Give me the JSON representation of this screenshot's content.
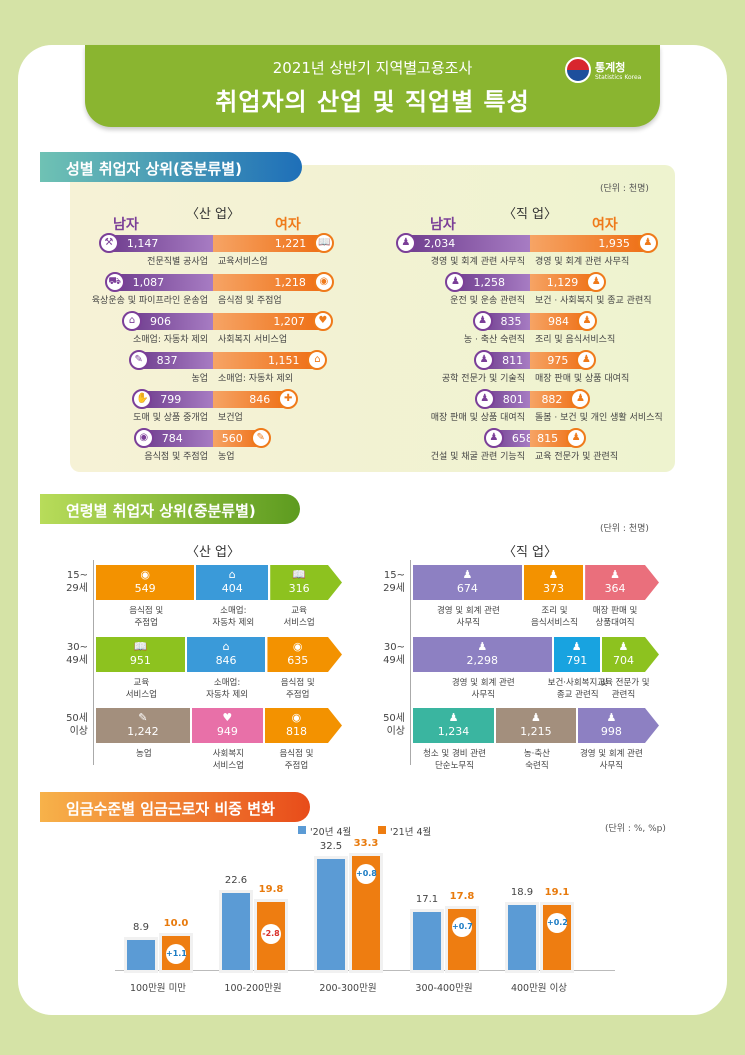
{
  "header": {
    "subtitle": "2021년 상반기 지역별고용조사",
    "title": "취업자의 산업 및 직업별 특성",
    "logo_text": "통계청",
    "logo_sub": "Statistics Korea"
  },
  "section1": {
    "title": "성별 취업자 상위(중분류별)",
    "unit": "(단위 : 천명)",
    "industry": {
      "title": "〈산 업〉",
      "male_label": "남자",
      "female_label": "여자",
      "rows": [
        {
          "male_name": "전문직별 공사업",
          "male_value": "1,147",
          "male_icon": "crane-icon",
          "female_name": "교육서비스업",
          "female_value": "1,221",
          "female_icon": "book-icon"
        },
        {
          "male_name": "육상운송 및 파이프라인 운송업",
          "male_value": "1,087",
          "male_icon": "truck-icon",
          "female_name": "음식점 및 주점업",
          "female_value": "1,218",
          "female_icon": "dish-icon"
        },
        {
          "male_name": "소매업: 자동차 제외",
          "male_value": "906",
          "male_icon": "store-icon",
          "female_name": "사회복지 서비스업",
          "female_value": "1,207",
          "female_icon": "heart-icon"
        },
        {
          "male_name": "농업",
          "male_value": "837",
          "male_icon": "corn-icon",
          "female_name": "소매업: 자동차 제외",
          "female_value": "1,151",
          "female_icon": "store-icon"
        },
        {
          "male_name": "도매 및 상품 중개업",
          "male_value": "799",
          "male_icon": "handshake-icon",
          "female_name": "보건업",
          "female_value": "846",
          "female_icon": "medical-kit-icon"
        },
        {
          "male_name": "음식점 및 주점업",
          "male_value": "784",
          "male_icon": "dish-icon",
          "female_name": "농업",
          "female_value": "560",
          "female_icon": "corn-icon"
        }
      ]
    },
    "occupation": {
      "title": "〈직 업〉",
      "male_label": "남자",
      "female_label": "여자",
      "rows": [
        {
          "male_name": "경영 및 회계 관련 사무직",
          "male_value": "2,034",
          "male_icon": "office-worker-icon",
          "female_name": "경영 및 회계 관련 사무직",
          "female_value": "1,935",
          "female_icon": "office-worker-icon"
        },
        {
          "male_name": "운전 및 운송 관련직",
          "male_value": "1,258",
          "male_icon": "driver-icon",
          "female_name": "보건 · 사회복지 및 종교 관련직",
          "female_value": "1,129",
          "female_icon": "doctor-icon"
        },
        {
          "male_name": "농 · 축산 숙련직",
          "male_value": "835",
          "male_icon": "farmer-icon",
          "female_name": "조리 및 음식서비스직",
          "female_value": "984",
          "female_icon": "chef-icon"
        },
        {
          "male_name": "공학 전문가 및 기술직",
          "male_value": "811",
          "male_icon": "engineer-icon",
          "female_name": "매장 판매 및 상품 대여직",
          "female_value": "975",
          "female_icon": "cashier-icon"
        },
        {
          "male_name": "매장 판매 및 상품 대여직",
          "male_value": "801",
          "male_icon": "cashier-icon",
          "female_name": "돌봄 · 보건 및 개인 생활 서비스직",
          "female_value": "882",
          "female_icon": "caregiver-icon"
        },
        {
          "male_name": "건설 및 채굴 관련 기능직",
          "male_value": "658",
          "male_icon": "construction-worker-icon",
          "female_name": "교육 전문가 및 관련직",
          "female_value": "815",
          "female_icon": "teacher-icon"
        }
      ]
    }
  },
  "section2": {
    "title": "연령별 취업자 상위(중분류별)",
    "unit": "(단위 : 천명)",
    "industry": {
      "title": "〈산 업〉",
      "rows": [
        {
          "age": "15~\n29세",
          "segments": [
            {
              "value": "549",
              "label": "음식점 및\n주점업",
              "color": "#f39200",
              "icon": "dish-icon"
            },
            {
              "value": "404",
              "label": "소매업:\n자동차 제외",
              "color": "#3a9ad9",
              "icon": "store-icon"
            },
            {
              "value": "316",
              "label": "교육\n서비스업",
              "color": "#8dc21f",
              "icon": "book-icon"
            }
          ]
        },
        {
          "age": "30~\n49세",
          "segments": [
            {
              "value": "951",
              "label": "교육\n서비스업",
              "color": "#8dc21f",
              "icon": "book-icon"
            },
            {
              "value": "846",
              "label": "소매업:\n자동차 제외",
              "color": "#3a9ad9",
              "icon": "store-icon"
            },
            {
              "value": "635",
              "label": "음식점 및\n주점업",
              "color": "#f39200",
              "icon": "dish-icon"
            }
          ]
        },
        {
          "age": "50세\n이상",
          "segments": [
            {
              "value": "1,242",
              "label": "농업",
              "color": "#a38f7d",
              "icon": "corn-icon"
            },
            {
              "value": "949",
              "label": "사회복지\n서비스업",
              "color": "#e870a8",
              "icon": "heart-icon"
            },
            {
              "value": "818",
              "label": "음식점 및\n주점업",
              "color": "#f39200",
              "icon": "dish-icon"
            }
          ]
        }
      ]
    },
    "occupation": {
      "title": "〈직 업〉",
      "rows": [
        {
          "age": "15~\n29세",
          "segments": [
            {
              "value": "674",
              "label": "경영 및 회계 관련\n사무직",
              "color": "#8d80c2",
              "icon": "office-worker-icon"
            },
            {
              "value": "373",
              "label": "조리 및\n음식서비스직",
              "color": "#f39200",
              "icon": "chef-icon"
            },
            {
              "value": "364",
              "label": "매장 판매 및\n상품대여직",
              "color": "#ea6f7c",
              "icon": "cashier-icon"
            }
          ]
        },
        {
          "age": "30~\n49세",
          "segments": [
            {
              "value": "2,298",
              "label": "경영 및 회계 관련\n사무직",
              "color": "#8d80c2",
              "icon": "office-worker-icon"
            },
            {
              "value": "791",
              "label": "보건·사회복지 및\n종교 관련직",
              "color": "#18a3e0",
              "icon": "doctor-icon"
            },
            {
              "value": "704",
              "label": "교육 전문가 및\n관련직",
              "color": "#8dc21f",
              "icon": "teacher-icon"
            }
          ]
        },
        {
          "age": "50세\n이상",
          "segments": [
            {
              "value": "1,234",
              "label": "청소 및 경비 관련\n단순노무직",
              "color": "#3ab5a0",
              "icon": "cleaner-icon"
            },
            {
              "value": "1,215",
              "label": "농·축산\n숙련직",
              "color": "#a38f7d",
              "icon": "farmer-icon"
            },
            {
              "value": "998",
              "label": "경영 및 회계 관련\n사무직",
              "color": "#8d80c2",
              "icon": "office-worker-icon"
            }
          ]
        }
      ]
    }
  },
  "section3": {
    "title": "임금수준별 임금근로자 비중 변화",
    "unit": "(단위 : %, %p)"
  },
  "chart_data": {
    "type": "bar",
    "title": "임금수준별 임금근로자 비중 변화",
    "unit": "(단위 : %, %p)",
    "legend": "top-center",
    "categories": [
      "100만원 미만",
      "100-200만원",
      "200-300만원",
      "300-400만원",
      "400만원 이상"
    ],
    "series": [
      {
        "name": "'20년 4월",
        "color": "#5b9bd5",
        "values": [
          8.9,
          22.6,
          32.5,
          17.1,
          18.9
        ],
        "labels": [
          "8.9",
          "22.6",
          "32.5",
          "17.1",
          "18.9"
        ]
      },
      {
        "name": "'21년 4월",
        "color": "#ee7d11",
        "values": [
          10.0,
          19.8,
          33.3,
          17.8,
          19.1
        ],
        "labels": [
          "10.0",
          "19.8",
          "33.3",
          "17.8",
          "19.1"
        ]
      }
    ],
    "changes": [
      "+1.1",
      "-2.8",
      "+0.8",
      "+0.7",
      "+0.2"
    ],
    "ylim": [
      0,
      35
    ],
    "grid": false
  }
}
